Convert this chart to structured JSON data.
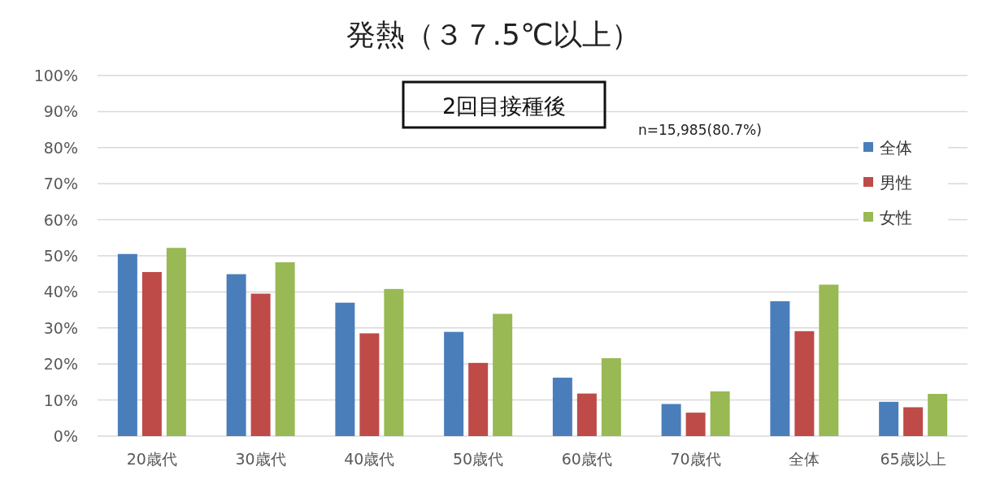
{
  "chart_data": {
    "type": "bar",
    "title": "発熱（３７.5℃以上）",
    "annotations": [
      "2回目接種後",
      "n=15,985(80.7%)"
    ],
    "categories": [
      "20歳代",
      "30歳代",
      "40歳代",
      "50歳代",
      "60歳代",
      "70歳代",
      "全体",
      "65歳以上"
    ],
    "series": [
      {
        "name": "全体",
        "color": "#4a7ebb",
        "values": [
          50.5,
          44.9,
          37.0,
          28.9,
          16.2,
          8.9,
          37.4,
          9.5
        ]
      },
      {
        "name": "男性",
        "color": "#be4b48",
        "values": [
          45.5,
          39.5,
          28.5,
          20.3,
          11.8,
          6.5,
          29.1,
          8.0
        ]
      },
      {
        "name": "女性",
        "color": "#98b954",
        "values": [
          52.2,
          48.2,
          40.8,
          33.9,
          21.6,
          12.4,
          42.0,
          11.7
        ]
      }
    ],
    "ylim": [
      0,
      100
    ],
    "yticks": [
      {
        "value": 0,
        "label": "0%"
      },
      {
        "value": 10,
        "label": "10%"
      },
      {
        "value": 20,
        "label": "20%"
      },
      {
        "value": 30,
        "label": "30%"
      },
      {
        "value": 40,
        "label": "40%"
      },
      {
        "value": 50,
        "label": "50%"
      },
      {
        "value": 60,
        "label": "60%"
      },
      {
        "value": 70,
        "label": "70%"
      },
      {
        "value": 80,
        "label": "80%"
      },
      {
        "value": 90,
        "label": "90%"
      },
      {
        "value": 100,
        "label": "100%"
      }
    ],
    "grid": "y",
    "legend": "top right"
  }
}
